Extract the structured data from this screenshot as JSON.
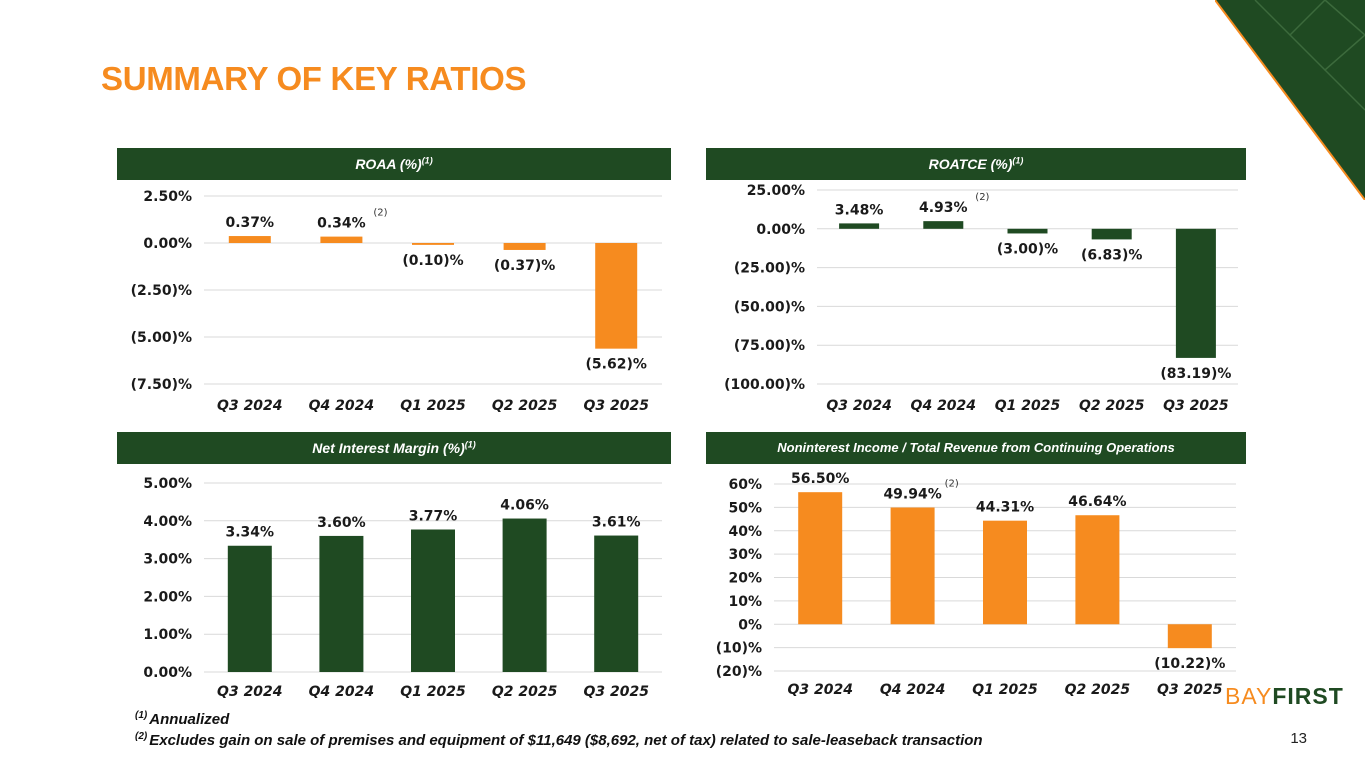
{
  "page": {
    "title": "SUMMARY OF KEY RATIOS",
    "page_number": "13"
  },
  "colors": {
    "orange": "#f68b1f",
    "green": "#1f4a22"
  },
  "brand": {
    "logo_part1": "BAY",
    "logo_part2": "FIRST"
  },
  "footnotes": [
    {
      "mark": "(1)",
      "text": "Annualized"
    },
    {
      "mark": "(2)",
      "text": "Excludes gain on sale of premises and equipment of $11,649 ($8,692, net of tax) related to sale-leaseback transaction"
    }
  ],
  "panels": {
    "roaa": {
      "title": "ROAA (%)",
      "sup": "(1)"
    },
    "roatce": {
      "title": "ROATCE (%)",
      "sup": "(1)"
    },
    "nim": {
      "title": "Net Interest Margin (%)",
      "sup": "(1)"
    },
    "nonint": {
      "title": "Noninterest Income / Total Revenue from Continuing Operations",
      "sup": ""
    }
  },
  "chart_data": [
    {
      "id": "roaa",
      "type": "bar",
      "title": "ROAA (%)",
      "color": "#f68b1f",
      "categories": [
        "Q3 2024",
        "Q4 2024",
        "Q1 2025",
        "Q2 2025",
        "Q3 2025"
      ],
      "values": [
        0.37,
        0.34,
        -0.1,
        -0.37,
        -5.62
      ],
      "labels": [
        "0.37%",
        "0.34%",
        "(0.10)%",
        "(0.37)%",
        "(5.62)%"
      ],
      "note": {
        "index": 1,
        "text": "(2)"
      },
      "ylim": [
        -7.5,
        2.5
      ],
      "ticks": [
        2.5,
        0,
        -2.5,
        -5,
        -7.5
      ],
      "tick_labels": [
        "2.50%",
        "0.00%",
        "(2.50)%",
        "(5.00)%",
        "(7.50)%"
      ]
    },
    {
      "id": "roatce",
      "type": "bar",
      "title": "ROATCE (%)",
      "color": "#1f4a22",
      "categories": [
        "Q3 2024",
        "Q4 2024",
        "Q1 2025",
        "Q2 2025",
        "Q3 2025"
      ],
      "values": [
        3.48,
        4.93,
        -3.0,
        -6.83,
        -83.19
      ],
      "labels": [
        "3.48%",
        "4.93%",
        "(3.00)%",
        "(6.83)%",
        "(83.19)%"
      ],
      "note": {
        "index": 1,
        "text": "(2)"
      },
      "ylim": [
        -100,
        25
      ],
      "ticks": [
        25,
        0,
        -25,
        -50,
        -75,
        -100
      ],
      "tick_labels": [
        "25.00%",
        "0.00%",
        "(25.00)%",
        "(50.00)%",
        "(75.00)%",
        "(100.00)%"
      ]
    },
    {
      "id": "nim",
      "type": "bar",
      "title": "Net Interest Margin (%)",
      "color": "#1f4a22",
      "categories": [
        "Q3 2024",
        "Q4 2024",
        "Q1 2025",
        "Q2 2025",
        "Q3 2025"
      ],
      "values": [
        3.34,
        3.6,
        3.77,
        4.06,
        3.61
      ],
      "labels": [
        "3.34%",
        "3.60%",
        "3.77%",
        "4.06%",
        "3.61%"
      ],
      "note": null,
      "ylim": [
        0,
        5
      ],
      "ticks": [
        5,
        4,
        3,
        2,
        1,
        0
      ],
      "tick_labels": [
        "5.00%",
        "4.00%",
        "3.00%",
        "2.00%",
        "1.00%",
        "0.00%"
      ]
    },
    {
      "id": "nonint",
      "type": "bar",
      "title": "Noninterest Income / Total Revenue from Continuing Operations",
      "color": "#f68b1f",
      "categories": [
        "Q3 2024",
        "Q4 2024",
        "Q1 2025",
        "Q2 2025",
        "Q3 2025"
      ],
      "values": [
        56.5,
        49.94,
        44.31,
        46.64,
        -10.22
      ],
      "labels": [
        "56.50%",
        "49.94%",
        "44.31%",
        "46.64%",
        "(10.22)%"
      ],
      "note": {
        "index": 1,
        "text": "(2)"
      },
      "ylim": [
        -20,
        60
      ],
      "ticks": [
        60,
        50,
        40,
        30,
        20,
        10,
        0,
        -10,
        -20
      ],
      "tick_labels": [
        "60%",
        "50%",
        "40%",
        "30%",
        "20%",
        "10%",
        "0%",
        "(10)%",
        "(20)%"
      ]
    }
  ]
}
